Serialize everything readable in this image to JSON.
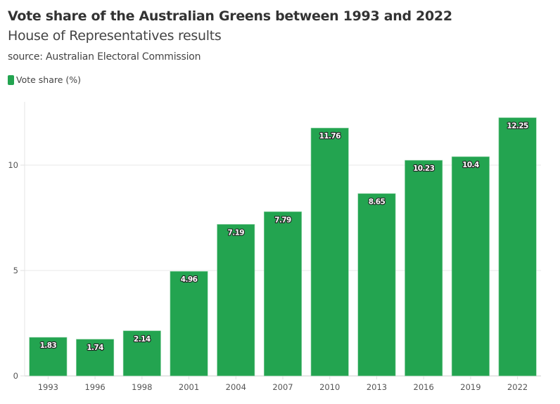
{
  "header": {
    "title": "Vote share of the Australian Greens between 1993 and 2022",
    "subtitle": "House of Representatives results",
    "source": "source: Australian Electoral Commission"
  },
  "legend": {
    "items": [
      {
        "label": "Vote share (%)",
        "color": "#23a450"
      }
    ]
  },
  "chart_data": {
    "type": "bar",
    "title": "Vote share of the Australian Greens between 1993 and 2022",
    "subtitle": "House of Representatives results",
    "source": "Australian Electoral Commission",
    "categories": [
      "1993",
      "1996",
      "1998",
      "2001",
      "2004",
      "2007",
      "2010",
      "2013",
      "2016",
      "2019",
      "2022"
    ],
    "series": [
      {
        "name": "Vote share (%)",
        "color": "#23a450",
        "values": [
          1.83,
          1.74,
          2.14,
          4.96,
          7.19,
          7.79,
          11.76,
          8.65,
          10.23,
          10.4,
          12.25
        ]
      }
    ],
    "xlabel": "",
    "ylabel": "",
    "ylim": [
      0,
      13
    ],
    "yticks": [
      0,
      5,
      10
    ],
    "grid": true,
    "legend_position": "top-left",
    "data_labels": true
  }
}
